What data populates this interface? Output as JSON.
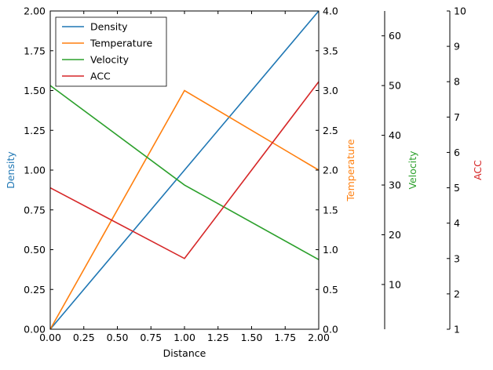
{
  "chart_data": {
    "type": "line",
    "x": [
      0,
      1,
      2
    ],
    "xlabel": "Distance",
    "xlim": [
      0,
      2
    ],
    "xticks": [
      "0.00",
      "0.25",
      "0.50",
      "0.75",
      "1.00",
      "1.25",
      "1.50",
      "1.75",
      "2.00"
    ],
    "legend_placement": "top-left",
    "grid": false,
    "axes": [
      {
        "label": "Density",
        "color": "#1f77b4",
        "ylim": [
          0,
          2
        ],
        "side": "left",
        "ticks": [
          "0.00",
          "0.25",
          "0.50",
          "0.75",
          "1.00",
          "1.25",
          "1.50",
          "1.75",
          "2.00"
        ]
      },
      {
        "label": "Temperature",
        "color": "#ff7f0e",
        "ylim": [
          0,
          4
        ],
        "side": "right",
        "ticks": [
          "0.0",
          "0.5",
          "1.0",
          "1.5",
          "2.0",
          "2.5",
          "3.0",
          "3.5",
          "4.0"
        ]
      },
      {
        "label": "Velocity",
        "color": "#2ca02c",
        "ylim": [
          1,
          65
        ],
        "side": "right",
        "ticks": [
          "10",
          "20",
          "30",
          "40",
          "50",
          "60"
        ]
      },
      {
        "label": "ACC",
        "color": "#d62728",
        "ylim": [
          1,
          10
        ],
        "side": "right",
        "ticks": [
          "1",
          "2",
          "3",
          "4",
          "5",
          "6",
          "7",
          "8",
          "9",
          "10"
        ]
      }
    ],
    "series": [
      {
        "name": "Density",
        "values": [
          0,
          1,
          2
        ]
      },
      {
        "name": "Temperature",
        "values": [
          0,
          3,
          2
        ]
      },
      {
        "name": "Velocity",
        "values": [
          50,
          30,
          15
        ]
      },
      {
        "name": "ACC",
        "values": [
          5,
          3,
          8
        ]
      }
    ]
  }
}
